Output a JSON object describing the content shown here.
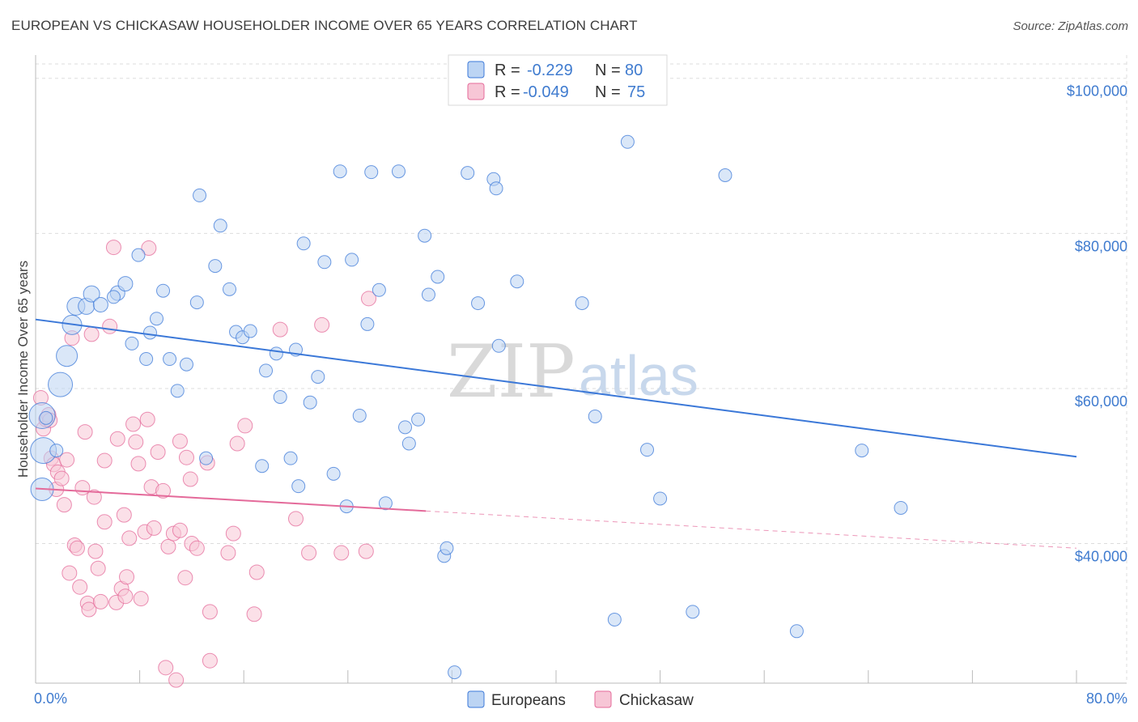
{
  "title": "EUROPEAN VS CHICKASAW HOUSEHOLDER INCOME OVER 65 YEARS CORRELATION CHART",
  "source": "Source: ZipAtlas.com",
  "watermark": {
    "zip": "ZIP",
    "atlas": "atlas"
  },
  "colors": {
    "blue": "#3b78d8",
    "blue_fill": "#bcd4f3",
    "pink": "#e46a9a",
    "pink_fill": "#f7c6d6",
    "grid": "#dddddd",
    "axis_text": "#3f7bcf"
  },
  "legend_top": {
    "rows": [
      {
        "r_label": "R =",
        "r_value": "-0.229",
        "n_label": "N =",
        "n_value": "80",
        "series": "europeans"
      },
      {
        "r_label": "R =",
        "r_value": "-0.049",
        "n_label": "N =",
        "n_value": "75",
        "series": "chickasaw"
      }
    ]
  },
  "legend_bottom": {
    "europeans": "Europeans",
    "chickasaw": "Chickasaw"
  },
  "chart_data": {
    "type": "scatter",
    "title": "EUROPEAN VS CHICKASAW HOUSEHOLDER INCOME OVER 65 YEARS CORRELATION CHART",
    "xlabel": "",
    "ylabel": "Householder Income Over 65 years",
    "xlim": [
      0,
      80
    ],
    "ylim": [
      22000,
      103000
    ],
    "x_tick_labels": {
      "min": "0.0%",
      "max": "80.0%"
    },
    "y_ticks": [
      {
        "value": 40000,
        "label": "$40,000"
      },
      {
        "value": 60000,
        "label": "$60,000"
      },
      {
        "value": 80000,
        "label": "$80,000"
      },
      {
        "value": 100000,
        "label": "$100,000"
      }
    ],
    "grid": true,
    "legend_placement": "top-center",
    "series": [
      {
        "name": "Europeans",
        "color": "#3b78d8",
        "trend": {
          "x0": 0,
          "y0": 68900,
          "x1": 80,
          "y1": 51200,
          "dashed_from": null
        },
        "points": [
          [
            0.5,
            56500,
            16
          ],
          [
            0.6,
            52000,
            16
          ],
          [
            0.5,
            47000,
            14
          ],
          [
            1.9,
            60500,
            15
          ],
          [
            2.4,
            64200,
            13
          ],
          [
            2.8,
            68200,
            12
          ],
          [
            3.1,
            70600,
            11
          ],
          [
            3.9,
            70600,
            10
          ],
          [
            4.3,
            72200,
            10
          ],
          [
            5.0,
            70800,
            9
          ],
          [
            6.3,
            72300,
            9
          ],
          [
            6.9,
            73500,
            9
          ],
          [
            7.4,
            65800,
            8
          ],
          [
            7.9,
            77200,
            8
          ],
          [
            8.5,
            63800,
            8
          ],
          [
            8.8,
            67200,
            8
          ],
          [
            9.3,
            69000,
            8
          ],
          [
            9.8,
            72600,
            8
          ],
          [
            10.3,
            63800,
            8
          ],
          [
            10.9,
            59700,
            8
          ],
          [
            11.6,
            63100,
            8
          ],
          [
            12.4,
            71100,
            8
          ],
          [
            12.6,
            84900,
            8
          ],
          [
            13.1,
            51000,
            8
          ],
          [
            13.8,
            75800,
            8
          ],
          [
            14.2,
            81000,
            8
          ],
          [
            14.9,
            72800,
            8
          ],
          [
            15.4,
            67300,
            8
          ],
          [
            15.9,
            66600,
            8
          ],
          [
            16.5,
            67400,
            8
          ],
          [
            17.4,
            50000,
            8
          ],
          [
            17.7,
            62300,
            8
          ],
          [
            18.5,
            64500,
            8
          ],
          [
            18.8,
            58900,
            8
          ],
          [
            19.6,
            51000,
            8
          ],
          [
            20.2,
            47400,
            8
          ],
          [
            20.0,
            65000,
            8
          ],
          [
            20.6,
            78700,
            8
          ],
          [
            21.1,
            58200,
            8
          ],
          [
            21.7,
            61500,
            8
          ],
          [
            22.2,
            76300,
            8
          ],
          [
            23.4,
            88000,
            8
          ],
          [
            22.9,
            49000,
            8
          ],
          [
            23.9,
            44800,
            8
          ],
          [
            24.3,
            76600,
            8
          ],
          [
            24.9,
            56500,
            8
          ],
          [
            25.5,
            68300,
            8
          ],
          [
            25.8,
            87900,
            8
          ],
          [
            26.4,
            72700,
            8
          ],
          [
            26.9,
            45200,
            8
          ],
          [
            27.9,
            88000,
            8
          ],
          [
            28.4,
            55000,
            8
          ],
          [
            28.7,
            52900,
            8
          ],
          [
            29.4,
            56000,
            8
          ],
          [
            29.9,
            79700,
            8
          ],
          [
            30.2,
            72100,
            8
          ],
          [
            30.9,
            74400,
            8
          ],
          [
            31.4,
            38400,
            8
          ],
          [
            31.6,
            39400,
            8
          ],
          [
            32.2,
            23400,
            8
          ],
          [
            33.2,
            87800,
            8
          ],
          [
            34.0,
            71000,
            8
          ],
          [
            35.2,
            87000,
            8
          ],
          [
            35.4,
            85800,
            8
          ],
          [
            35.6,
            65500,
            8
          ],
          [
            37.0,
            73800,
            8
          ],
          [
            42.0,
            71000,
            8
          ],
          [
            43.0,
            56400,
            8
          ],
          [
            44.5,
            30200,
            8
          ],
          [
            45.5,
            91800,
            8
          ],
          [
            47.0,
            52100,
            8
          ],
          [
            48.0,
            45800,
            8
          ],
          [
            50.5,
            31200,
            8
          ],
          [
            53.0,
            87500,
            8
          ],
          [
            58.5,
            28700,
            8
          ],
          [
            63.5,
            52000,
            8
          ],
          [
            66.5,
            44600,
            8
          ],
          [
            0.8,
            56200,
            8
          ],
          [
            1.6,
            52000,
            8
          ],
          [
            6.0,
            71800,
            8
          ]
        ]
      },
      {
        "name": "Chickasaw",
        "color": "#e46a9a",
        "trend": {
          "x0": 0,
          "y0": 47100,
          "x1": 30,
          "y1": 44200,
          "dashed_to_x": 80,
          "dashed_to_y": 39400
        },
        "points": [
          [
            0.4,
            58800,
            9
          ],
          [
            0.6,
            54800,
            9
          ],
          [
            0.8,
            56000,
            9
          ],
          [
            1.0,
            56600,
            9
          ],
          [
            1.2,
            51000,
            9
          ],
          [
            1.4,
            50200,
            9
          ],
          [
            1.6,
            47000,
            9
          ],
          [
            1.7,
            49200,
            9
          ],
          [
            2.0,
            48400,
            9
          ],
          [
            2.2,
            45000,
            9
          ],
          [
            2.4,
            50800,
            9
          ],
          [
            2.6,
            36200,
            9
          ],
          [
            2.8,
            66500,
            9
          ],
          [
            3.0,
            39800,
            9
          ],
          [
            3.2,
            39400,
            9
          ],
          [
            3.4,
            34400,
            9
          ],
          [
            3.6,
            47200,
            9
          ],
          [
            3.8,
            54400,
            9
          ],
          [
            4.0,
            32300,
            9
          ],
          [
            4.1,
            31500,
            9
          ],
          [
            4.3,
            67000,
            9
          ],
          [
            4.5,
            46000,
            9
          ],
          [
            4.6,
            39000,
            9
          ],
          [
            4.8,
            36800,
            9
          ],
          [
            5.0,
            32500,
            9
          ],
          [
            5.3,
            50700,
            9
          ],
          [
            5.3,
            42800,
            9
          ],
          [
            5.7,
            68000,
            9
          ],
          [
            6.0,
            78200,
            9
          ],
          [
            6.2,
            32400,
            9
          ],
          [
            6.3,
            53500,
            9
          ],
          [
            6.6,
            34200,
            9
          ],
          [
            6.8,
            43700,
            9
          ],
          [
            6.9,
            33200,
            9
          ],
          [
            7.0,
            35700,
            9
          ],
          [
            7.2,
            40700,
            9
          ],
          [
            7.5,
            55400,
            9
          ],
          [
            7.7,
            53100,
            9
          ],
          [
            7.9,
            50300,
            9
          ],
          [
            8.1,
            32900,
            9
          ],
          [
            8.4,
            41500,
            9
          ],
          [
            8.6,
            56000,
            9
          ],
          [
            8.7,
            78100,
            9
          ],
          [
            8.9,
            47300,
            9
          ],
          [
            9.1,
            42000,
            9
          ],
          [
            9.4,
            51800,
            9
          ],
          [
            9.8,
            46800,
            9
          ],
          [
            10.0,
            24000,
            9
          ],
          [
            10.2,
            39600,
            9
          ],
          [
            10.6,
            41300,
            9
          ],
          [
            10.8,
            22400,
            9
          ],
          [
            11.1,
            53200,
            9
          ],
          [
            11.1,
            41700,
            9
          ],
          [
            11.5,
            35600,
            9
          ],
          [
            11.6,
            51100,
            9
          ],
          [
            11.9,
            48300,
            9
          ],
          [
            12.0,
            40000,
            9
          ],
          [
            12.4,
            39400,
            9
          ],
          [
            13.2,
            50400,
            9
          ],
          [
            13.4,
            31200,
            9
          ],
          [
            13.4,
            24900,
            9
          ],
          [
            14.8,
            38800,
            9
          ],
          [
            15.2,
            41300,
            9
          ],
          [
            15.5,
            52900,
            9
          ],
          [
            16.1,
            55200,
            9
          ],
          [
            16.8,
            30900,
            9
          ],
          [
            17.0,
            36300,
            9
          ],
          [
            18.8,
            67600,
            9
          ],
          [
            20.0,
            43200,
            9
          ],
          [
            21.0,
            38800,
            9
          ],
          [
            22.0,
            68200,
            9
          ],
          [
            23.5,
            38800,
            9
          ],
          [
            25.4,
            39000,
            9
          ],
          [
            25.6,
            71600,
            9
          ],
          [
            1.1,
            55900,
            9
          ]
        ]
      }
    ]
  }
}
